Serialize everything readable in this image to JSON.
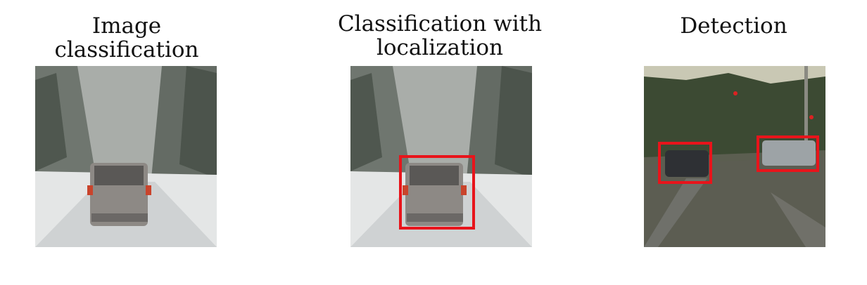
{
  "panels": [
    {
      "title": "Image classification",
      "image": "snowy road with SUV"
    },
    {
      "title": "Classification with localization",
      "image": "snowy road with SUV, bounding box around vehicle"
    },
    {
      "title": "Detection",
      "image": "street intersection with two cars, bounding boxes around each car"
    }
  ],
  "colors": {
    "box": "#e8141b",
    "text": "#111111",
    "background": "#ffffff"
  }
}
